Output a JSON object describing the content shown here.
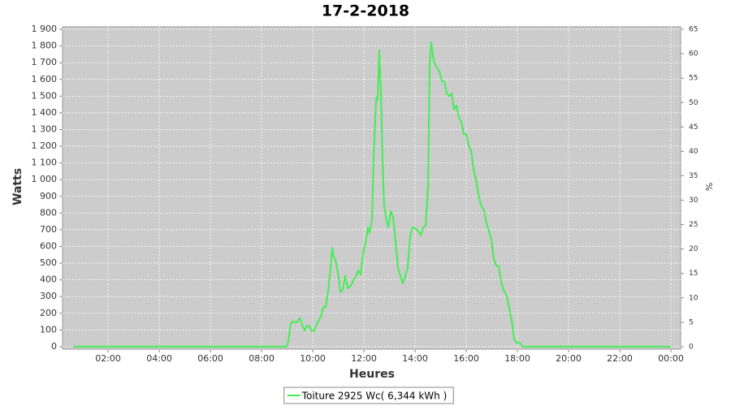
{
  "chart_data": {
    "type": "line",
    "title": "17-2-2018",
    "x_label": "Heures",
    "y_label": "Watts",
    "y2_label": "%",
    "x": [
      0.63,
      8.98,
      9.05,
      9.14,
      9.21,
      9.37,
      9.49,
      9.59,
      9.68,
      9.78,
      9.87,
      9.97,
      10.06,
      10.16,
      10.32,
      10.41,
      10.51,
      10.6,
      10.7,
      10.76,
      10.83,
      10.89,
      10.98,
      11.08,
      11.17,
      11.27,
      11.37,
      11.49,
      11.59,
      11.68,
      11.78,
      11.87,
      11.97,
      12.06,
      12.16,
      12.22,
      12.32,
      12.38,
      12.48,
      12.54,
      12.6,
      12.67,
      12.73,
      12.79,
      12.86,
      12.95,
      13.05,
      13.14,
      13.24,
      13.33,
      13.43,
      13.52,
      13.62,
      13.71,
      13.81,
      13.9,
      14.03,
      14.13,
      14.22,
      14.32,
      14.41,
      14.51,
      14.57,
      14.63,
      14.73,
      14.83,
      14.95,
      15.05,
      15.14,
      15.24,
      15.33,
      15.43,
      15.52,
      15.62,
      15.71,
      15.81,
      15.9,
      16,
      16.1,
      16.19,
      16.29,
      16.38,
      16.48,
      16.57,
      16.7,
      16.79,
      16.89,
      16.98,
      17.08,
      17.17,
      17.27,
      17.37,
      17.46,
      17.59,
      17.68,
      17.78,
      17.87,
      17.97,
      18.1,
      18.19,
      24
    ],
    "series": [
      {
        "name": "Toiture 2925 Wc( 6,344 kWh )",
        "color": "#44ee55",
        "values": [
          0,
          0,
          34,
          141,
          150,
          146,
          170,
          131,
          97,
          126,
          121,
          92,
          97,
          136,
          180,
          238,
          238,
          335,
          471,
          593,
          530,
          520,
          447,
          326,
          340,
          423,
          350,
          364,
          398,
          418,
          457,
          432,
          559,
          617,
          714,
          680,
          763,
          1127,
          1492,
          1477,
          1773,
          1492,
          1103,
          850,
          773,
          714,
          811,
          773,
          627,
          471,
          423,
          379,
          423,
          471,
          666,
          714,
          705,
          690,
          666,
          714,
          724,
          957,
          1686,
          1822,
          1710,
          1676,
          1647,
          1589,
          1589,
          1516,
          1501,
          1516,
          1419,
          1443,
          1370,
          1346,
          1273,
          1273,
          1200,
          1176,
          1054,
          1006,
          909,
          850,
          811,
          739,
          690,
          641,
          520,
          486,
          481,
          384,
          340,
          301,
          228,
          155,
          44,
          24,
          24,
          0,
          0
        ]
      }
    ],
    "xlim": [
      0.22,
      24.38
    ],
    "xticks": [
      {
        "value": 2,
        "label": "02:00"
      },
      {
        "value": 4,
        "label": "04:00"
      },
      {
        "value": 6,
        "label": "06:00"
      },
      {
        "value": 8,
        "label": "08:00"
      },
      {
        "value": 10,
        "label": "10:00"
      },
      {
        "value": 12,
        "label": "12:00"
      },
      {
        "value": 14,
        "label": "14:00"
      },
      {
        "value": 16,
        "label": "16:00"
      },
      {
        "value": 18,
        "label": "18:00"
      },
      {
        "value": 20,
        "label": "20:00"
      },
      {
        "value": 22,
        "label": "22:00"
      },
      {
        "value": 24,
        "label": "00:00"
      }
    ],
    "ylim": [
      -15,
      1915
    ],
    "yticks": [
      0,
      100,
      200,
      300,
      400,
      500,
      600,
      700,
      800,
      900,
      {
        "value": 1000,
        "label": "1 000"
      },
      {
        "value": 1100,
        "label": "1 100"
      },
      {
        "value": 1200,
        "label": "1 200"
      },
      {
        "value": 1300,
        "label": "1 300"
      },
      {
        "value": 1400,
        "label": "1 400"
      },
      {
        "value": 1500,
        "label": "1 500"
      },
      {
        "value": 1600,
        "label": "1 600"
      },
      {
        "value": 1700,
        "label": "1 700"
      },
      {
        "value": 1800,
        "label": "1 800"
      },
      {
        "value": 1900,
        "label": "1 900"
      }
    ],
    "y2lim": [
      -0.51,
      65.51
    ],
    "y2ticks": [
      0,
      5,
      10,
      15,
      20,
      25,
      30,
      35,
      40,
      45,
      50,
      55,
      60,
      65
    ],
    "grid": true,
    "legend": "bottom"
  }
}
